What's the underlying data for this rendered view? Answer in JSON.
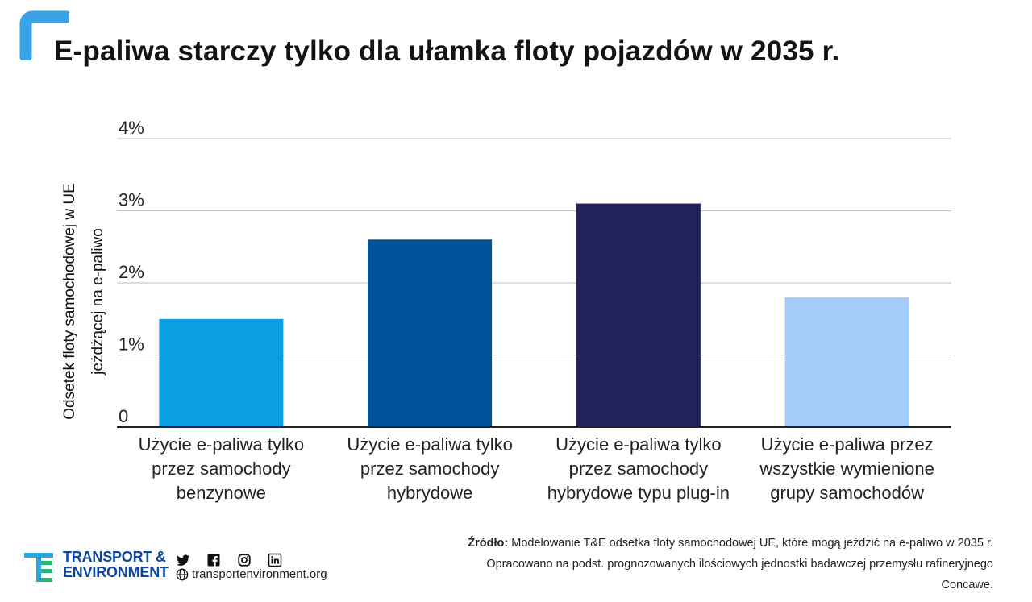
{
  "title": "E-paliwa starczy tylko dla ułamka floty pojazdów w 2035 r.",
  "chart_data": {
    "type": "bar",
    "ylabel_lines": [
      "Odsetek floty samochodowej w UE",
      "jeżdżącej na e-paliwo"
    ],
    "yticks": [
      "0",
      "1%",
      "2%",
      "3%",
      "4%"
    ],
    "ylim": [
      0,
      4
    ],
    "categories": [
      [
        "Użycie e-paliwa tylko",
        "przez samochody",
        "benzynowe"
      ],
      [
        "Użycie e-paliwa tylko",
        "przez samochody",
        "hybrydowe"
      ],
      [
        "Użycie e-paliwa tylko",
        "przez samochody",
        "hybrydowe typu plug-in"
      ],
      [
        "Użycie e-paliwa przez",
        "wszystkie wymienione",
        "grupy samochodów"
      ]
    ],
    "values": [
      1.5,
      2.6,
      3.1,
      1.8
    ],
    "colors": [
      "#0a9fe3",
      "#00529b",
      "#23215b",
      "#a3cdf8"
    ],
    "grid": true
  },
  "footer": {
    "brand_line1": "TRANSPORT &",
    "brand_line2": "ENVIRONMENT",
    "website": "transportenvironment.org",
    "social_icons": [
      "twitter-icon",
      "facebook-icon",
      "instagram-icon",
      "linkedin-icon"
    ],
    "source_label": "Źródło:",
    "source_text": "Modelowanie T&E odsetka floty samochodowej UE, które mogą jeździć na e-paliwo w 2035 r. Opracowano na podst. prognozowanych ilościowych jednostki badawczej przemysłu rafineryjnego Concawe."
  },
  "colors": {
    "accent_light": "#3aa3e6",
    "brand_blue": "#0d47a1",
    "brand_cyan": "#29a8e0",
    "gridline": "#bfbfbf",
    "axis": "#222222"
  }
}
